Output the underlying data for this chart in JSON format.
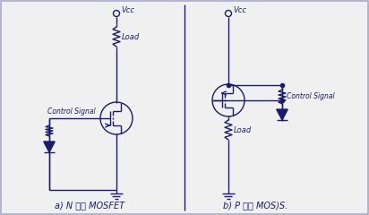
{
  "bg_color": "#f0f0f0",
  "line_color": "#1a1a6e",
  "text_color": "#1a1a6e",
  "border_color": "#aaaacc",
  "title_a": "a) N 沟道 MOSFET",
  "title_b": "b) P 沟道 MOS)S.",
  "label_vcc": "Vcc",
  "label_load": "Load",
  "label_control": "Control Signal",
  "figsize": [
    4.12,
    2.4
  ],
  "dpi": 100
}
